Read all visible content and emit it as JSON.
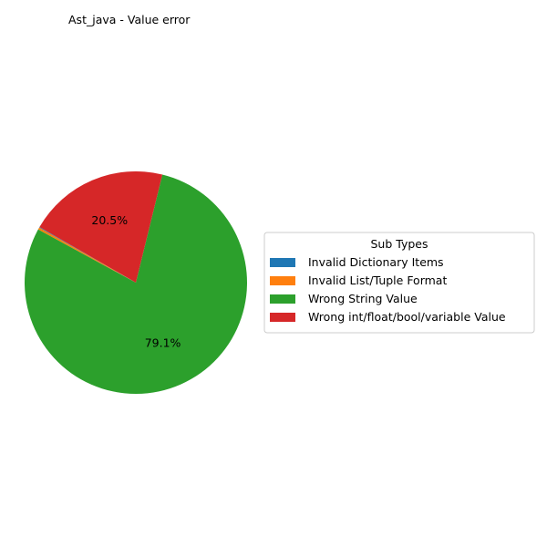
{
  "chart_data": {
    "type": "pie",
    "title": "Ast_java - Value error",
    "legend": {
      "title": "Sub Types",
      "placement": "right"
    },
    "slices": [
      {
        "label": "Invalid Dictionary Items",
        "value": 0.1,
        "color": "#1f77b4",
        "pct_label": ""
      },
      {
        "label": "Invalid List/Tuple Format",
        "value": 0.3,
        "color": "#ff7f0e",
        "pct_label": ""
      },
      {
        "label": "Wrong String Value",
        "value": 79.1,
        "color": "#2ca02c",
        "pct_label": "79.1%"
      },
      {
        "label": "Wrong int/float/bool/variable Value",
        "value": 20.5,
        "color": "#d62728",
        "pct_label": "20.5%"
      }
    ]
  }
}
